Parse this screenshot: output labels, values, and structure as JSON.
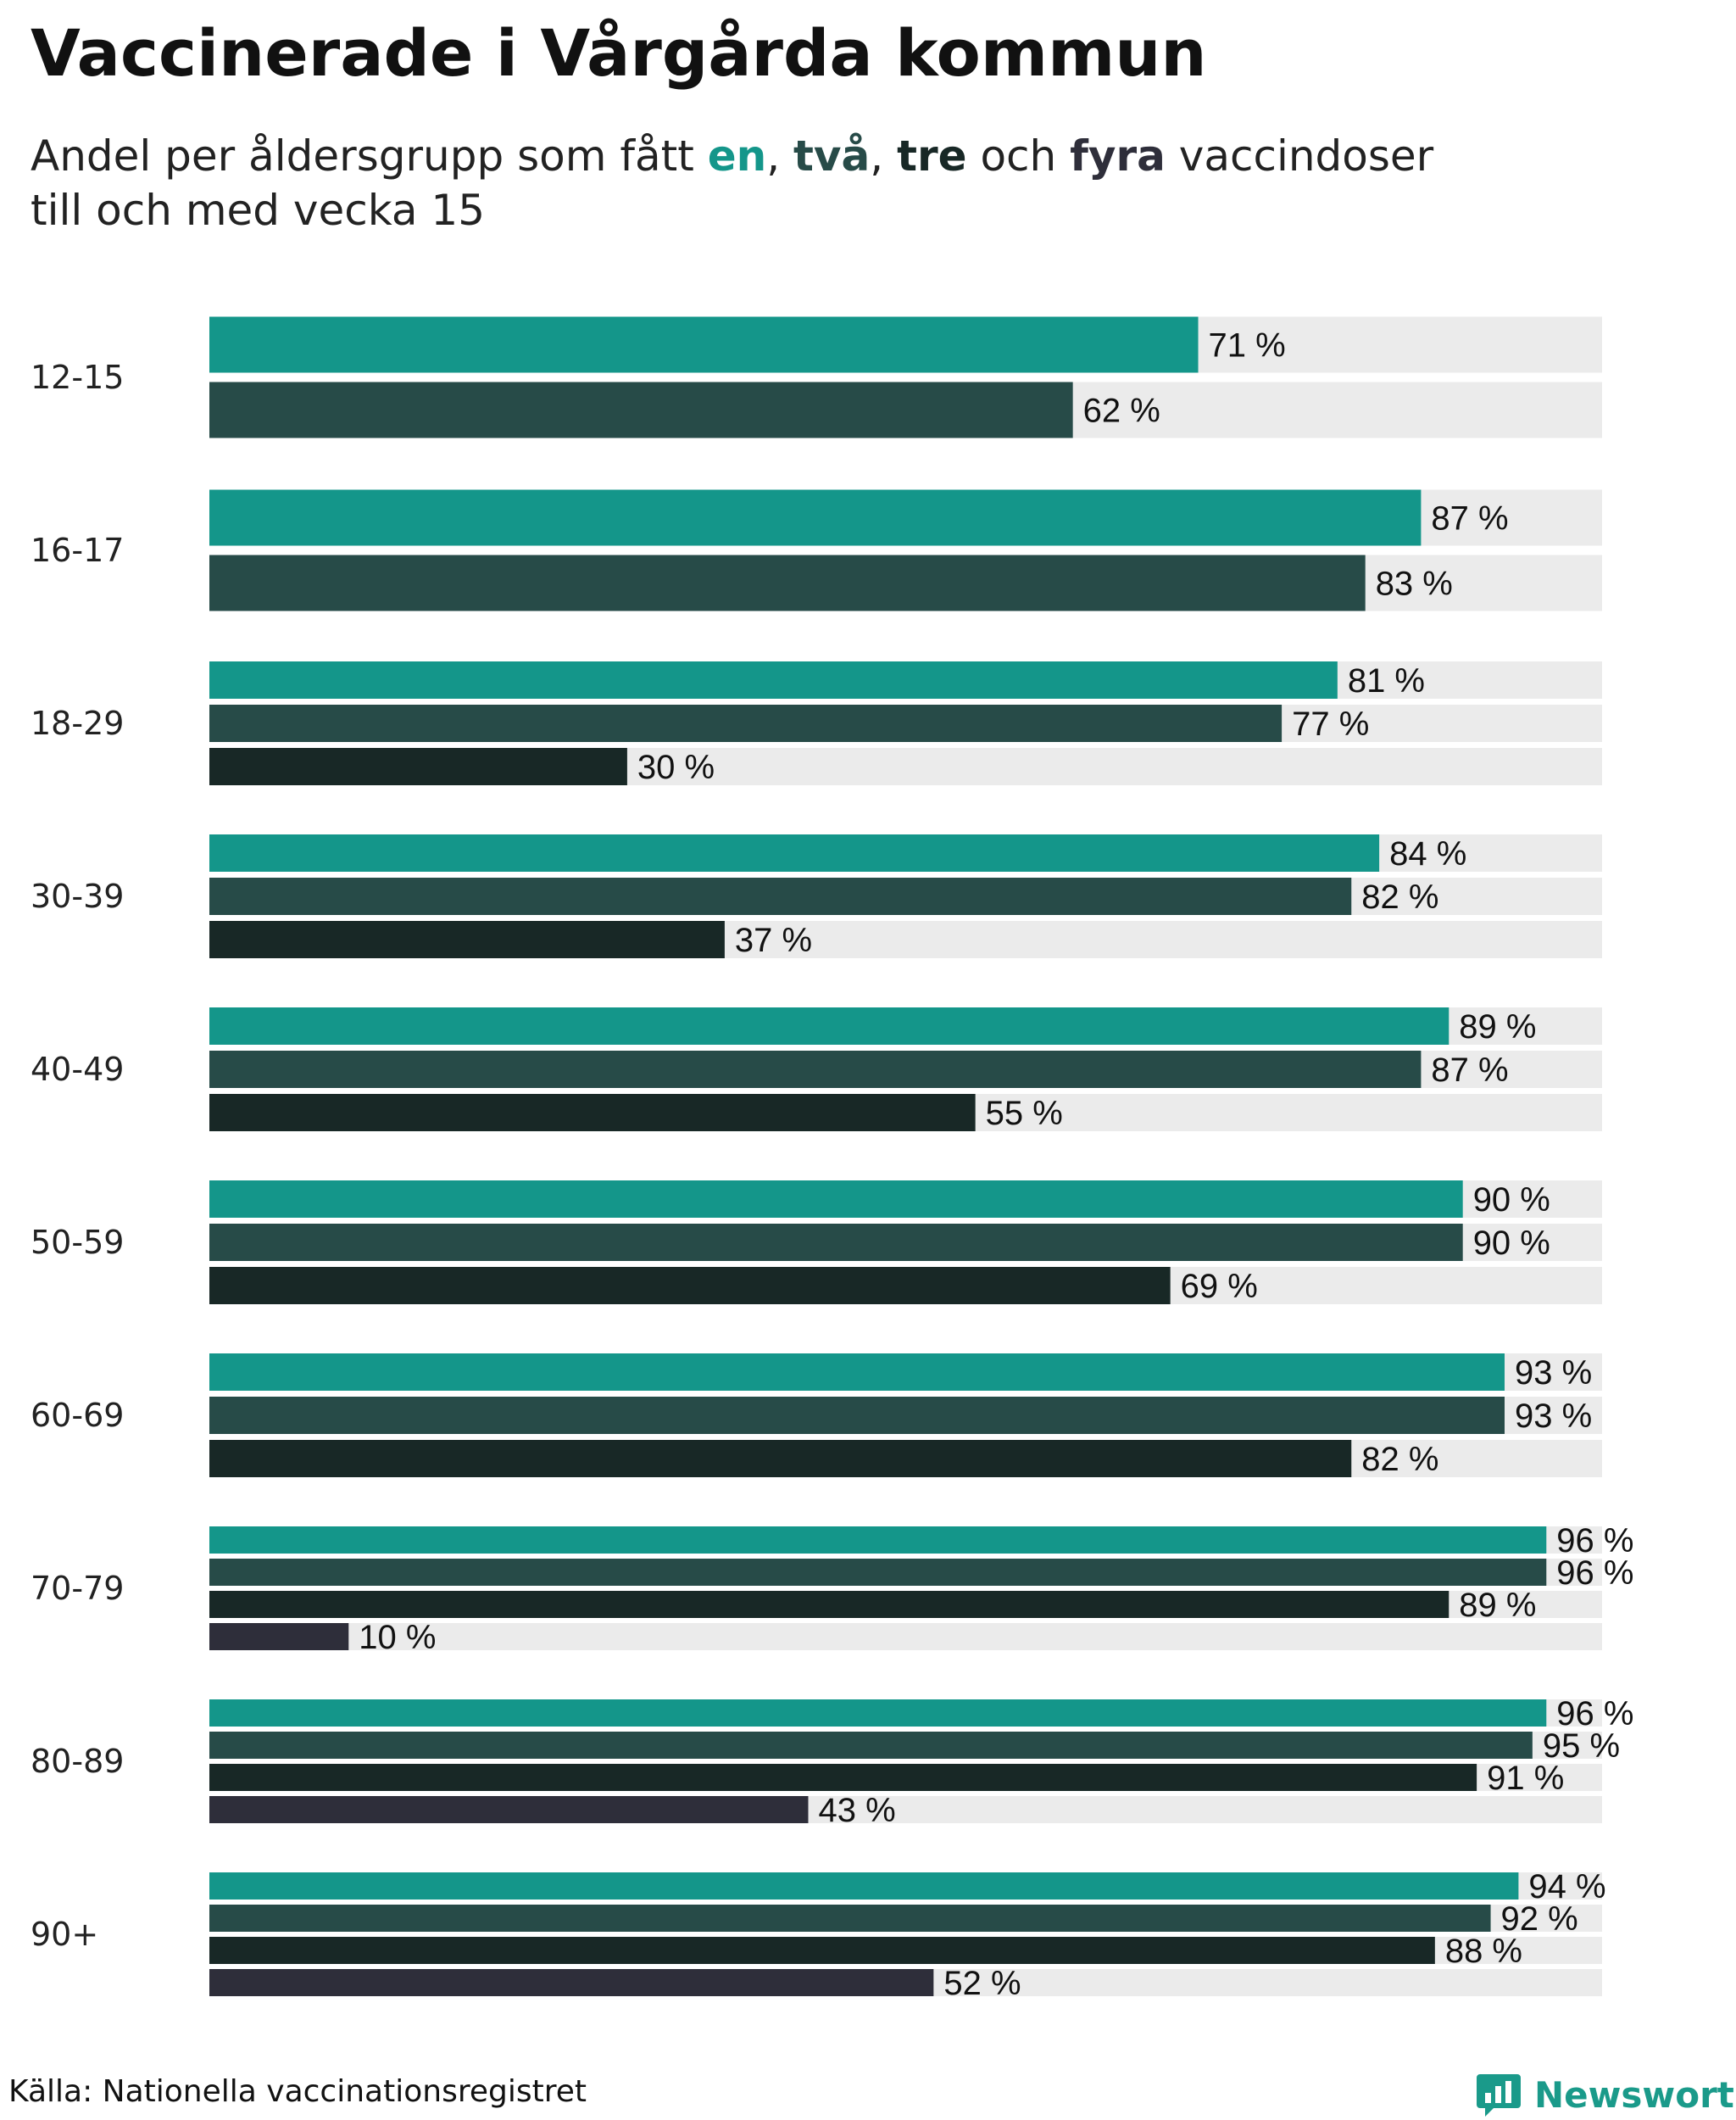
{
  "header": {
    "title": "Vaccinerade i Vårgårda kommun",
    "subtitle_prefix": "Andel per åldersgrupp som fått ",
    "dose_words": [
      "en",
      "två",
      "tre",
      "fyra"
    ],
    "sep1": ", ",
    "sep2": ", ",
    "sep3": " och ",
    "subtitle_line1_end": " vaccindoser",
    "subtitle_line2": "till och med vecka 15"
  },
  "colors": {
    "dose1": "#14968a",
    "dose2": "#274b48",
    "dose3": "#182826",
    "dose4": "#2e2e3a",
    "track": "#ebebeb"
  },
  "chart_data": {
    "type": "bar",
    "orientation": "horizontal",
    "title": "Vaccinerade i Vårgårda kommun",
    "subtitle": "Andel per åldersgrupp som fått en, två, tre och fyra vaccindoser till och med vecka 15",
    "categories": [
      "12-15",
      "16-17",
      "18-29",
      "30-39",
      "40-49",
      "50-59",
      "60-69",
      "70-79",
      "80-89",
      "90+"
    ],
    "series": [
      {
        "name": "en",
        "values": [
          71,
          87,
          81,
          84,
          89,
          90,
          93,
          96,
          96,
          94
        ]
      },
      {
        "name": "två",
        "values": [
          62,
          83,
          77,
          82,
          87,
          90,
          93,
          96,
          95,
          92
        ]
      },
      {
        "name": "tre",
        "values": [
          null,
          null,
          30,
          37,
          55,
          69,
          82,
          89,
          91,
          88
        ]
      },
      {
        "name": "fyra",
        "values": [
          null,
          null,
          null,
          null,
          null,
          null,
          null,
          10,
          43,
          52
        ]
      }
    ],
    "xlim": [
      0,
      100
    ],
    "value_suffix": " %",
    "grid": false,
    "legend": "inline in subtitle"
  },
  "footer": {
    "source": "Källa: Nationella vaccinationsregistret",
    "brand": "Newsworthy"
  }
}
